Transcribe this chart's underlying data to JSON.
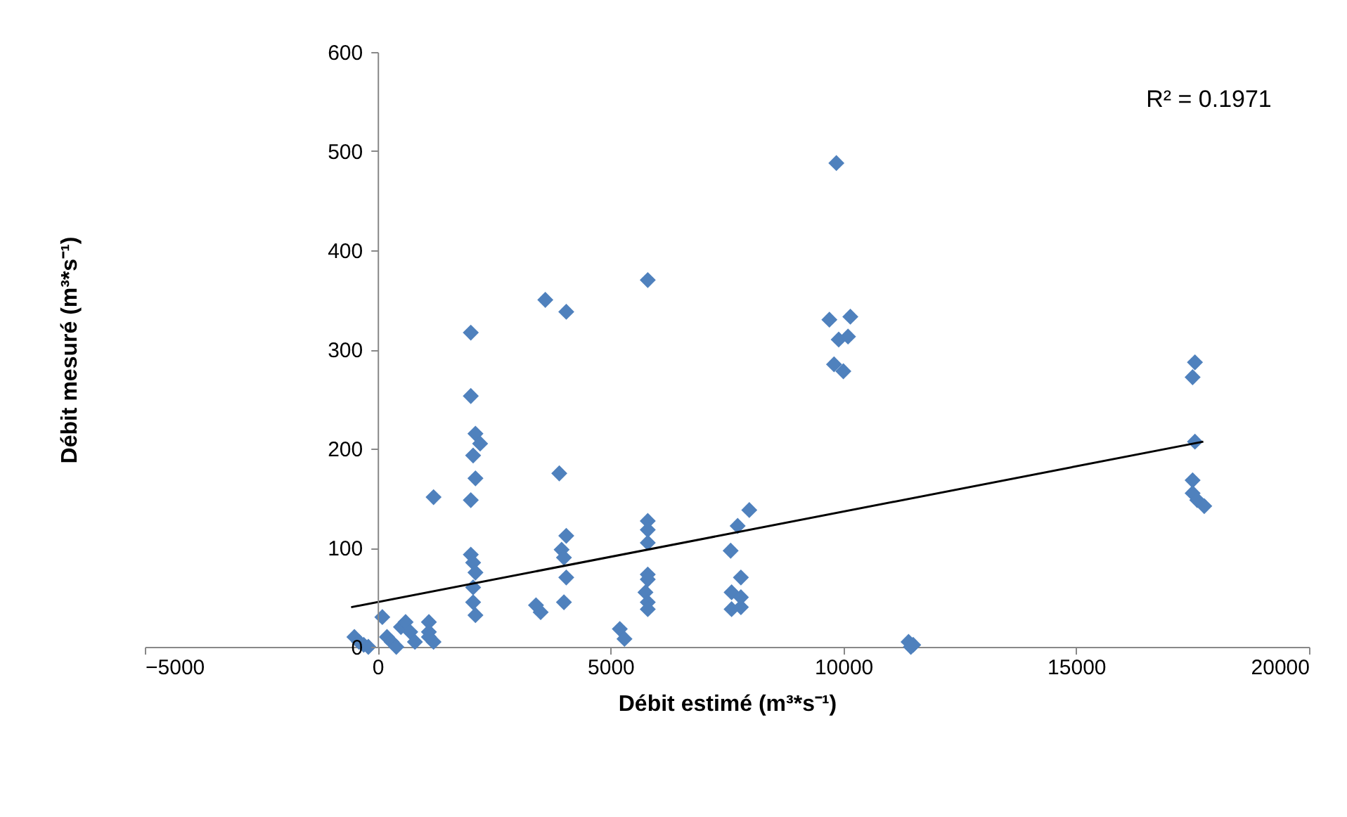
{
  "chart_data": {
    "type": "scatter",
    "xlabel": "Débit estimé (m³*s⁻¹)",
    "ylabel": "Débit mesuré (m³*s⁻¹)",
    "xlim": [
      -5000,
      20000
    ],
    "xticks": [
      -5000,
      0,
      5000,
      10000,
      15000,
      20000
    ],
    "ylim": [
      0,
      600
    ],
    "yticks": [
      0,
      100,
      200,
      300,
      400,
      500,
      600
    ],
    "grid": false,
    "marker": "diamond",
    "annotations": [
      "R² = 0.1971"
    ],
    "series": [
      {
        "color": "#4f81bd",
        "x": [
          -500,
          -400,
          -300,
          -200,
          100,
          200,
          300,
          400,
          500,
          600,
          700,
          800,
          1100,
          1100,
          1200,
          1100,
          1200,
          2000,
          2000,
          2100,
          2200,
          2050,
          2100,
          2000,
          2000,
          2050,
          2100,
          2050,
          2050,
          2100,
          3400,
          3500,
          3600,
          4050,
          3900,
          4050,
          3950,
          4000,
          4050,
          4000,
          5200,
          5300,
          5800,
          5800,
          5800,
          5800,
          5800,
          5800,
          5750,
          5800,
          5800,
          7580,
          7730,
          7980,
          7800,
          7600,
          7800,
          7600,
          7800,
          9850,
          9700,
          9900,
          10150,
          10100,
          9800,
          10000,
          11400,
          11500,
          11450,
          17550,
          17500,
          17550,
          17500,
          17500,
          17600,
          17750
        ],
        "values": [
          10,
          5,
          2,
          0,
          30,
          10,
          5,
          0,
          20,
          25,
          15,
          5,
          25,
          15,
          5,
          10,
          151,
          317,
          253,
          215,
          205,
          193,
          170,
          148,
          93,
          85,
          75,
          60,
          45,
          32,
          42,
          35,
          350,
          338,
          175,
          112,
          98,
          90,
          70,
          45,
          18,
          8,
          370,
          127,
          118,
          105,
          73,
          68,
          55,
          45,
          38,
          97,
          122,
          138,
          70,
          55,
          50,
          38,
          40,
          488,
          330,
          310,
          333,
          313,
          285,
          278,
          5,
          2,
          0,
          287,
          272,
          207,
          168,
          155,
          148,
          142
        ]
      },
      {
        "type": "line",
        "marker": "none",
        "color": "#000000",
        "x": [
          -570,
          17730
        ],
        "values": [
          40,
          207
        ]
      }
    ]
  }
}
